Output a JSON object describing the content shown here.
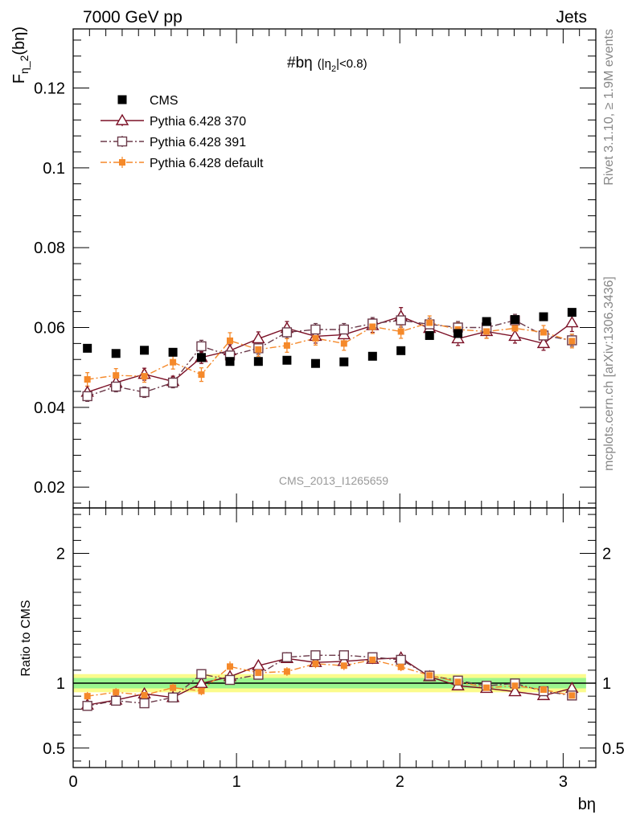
{
  "header": {
    "left": "7000 GeV pp",
    "right": "Jets"
  },
  "side_labels": {
    "rivet": "Rivet 3.1.10, ≥ 1.9M events",
    "mcplots": "mcplots.cern.ch [arXiv:1306.3436]"
  },
  "chart_data": [
    {
      "type": "scatter",
      "title_main": "#bη",
      "title_cut": "(|η",
      "title_cut_sub": "2",
      "title_cut_end": "|<0.8)",
      "ylabel_main": "F",
      "ylabel_sub": "η_2",
      "ylabel_end": "(bη)",
      "watermark": "CMS_2013_I1265659",
      "ylim": [
        0.0148,
        0.1348
      ],
      "xlim": [
        0,
        3.2
      ],
      "y_ticks": [
        0.02,
        0.04,
        0.06,
        0.08,
        0.1,
        0.12
      ],
      "y_tick_labels": [
        "0.02",
        "0.04",
        "0.06",
        "0.08",
        "0.1",
        "0.12"
      ],
      "legend_position": "top-left",
      "x": [
        0.087,
        0.262,
        0.436,
        0.611,
        0.785,
        0.96,
        1.134,
        1.309,
        1.484,
        1.658,
        1.833,
        2.007,
        2.182,
        2.356,
        2.531,
        2.705,
        2.88,
        3.054
      ],
      "series": [
        {
          "name": "CMS",
          "color": "#000000",
          "marker": "filled-square",
          "line": "none",
          "values": [
            0.0548,
            0.0535,
            0.0543,
            0.0538,
            0.0525,
            0.0515,
            0.0515,
            0.0518,
            0.051,
            0.0514,
            0.0528,
            0.0542,
            0.058,
            0.0585,
            0.0615,
            0.062,
            0.0627,
            0.0638
          ]
        },
        {
          "name": "Pythia 6.428 370",
          "color": "#7b1026",
          "marker": "open-triangle",
          "line": "solid",
          "values": [
            0.0438,
            0.0462,
            0.0483,
            0.0465,
            0.0525,
            0.0542,
            0.0572,
            0.0598,
            0.0578,
            0.0582,
            0.0605,
            0.0628,
            0.0598,
            0.0572,
            0.059,
            0.0578,
            0.056,
            0.0612
          ],
          "errors": [
            0.0015,
            0.0015,
            0.0015,
            0.0013,
            0.0015,
            0.0015,
            0.0017,
            0.0017,
            0.0017,
            0.0017,
            0.0017,
            0.0022,
            0.0017,
            0.0017,
            0.0017,
            0.0017,
            0.0017,
            0.0022
          ]
        },
        {
          "name": "Pythia 6.428 391",
          "color": "#6b3a4a",
          "marker": "open-square",
          "line": "dash-dot",
          "values": [
            0.0428,
            0.0452,
            0.0438,
            0.0462,
            0.0553,
            0.053,
            0.0548,
            0.0588,
            0.0595,
            0.0595,
            0.061,
            0.0618,
            0.0608,
            0.06,
            0.06,
            0.0618,
            0.058,
            0.0568
          ],
          "errors": [
            0.0013,
            0.0013,
            0.0013,
            0.0013,
            0.0015,
            0.0015,
            0.0015,
            0.0015,
            0.0015,
            0.0015,
            0.0015,
            0.0017,
            0.0015,
            0.0015,
            0.0015,
            0.0015,
            0.0015,
            0.0015
          ]
        },
        {
          "name": "Pythia 6.428 default",
          "color": "#f5892a",
          "marker": "filled-small-square",
          "line": "dash-dot",
          "values": [
            0.047,
            0.048,
            0.0478,
            0.0513,
            0.0482,
            0.0567,
            0.0545,
            0.0555,
            0.0573,
            0.056,
            0.0602,
            0.059,
            0.0612,
            0.0595,
            0.059,
            0.0598,
            0.0588,
            0.0566
          ],
          "errors": [
            0.0017,
            0.0017,
            0.0015,
            0.0017,
            0.0017,
            0.002,
            0.0017,
            0.0017,
            0.0017,
            0.0017,
            0.0017,
            0.0017,
            0.0017,
            0.0017,
            0.0017,
            0.0017,
            0.0017,
            0.0017
          ]
        }
      ]
    },
    {
      "type": "scatter",
      "ylabel": "Ratio to CMS",
      "xlabel": "bη",
      "ylim": [
        0.35,
        2.35
      ],
      "xlim": [
        0,
        3.2
      ],
      "y_ticks": [
        0.5,
        1,
        2
      ],
      "y_tick_labels": [
        "0.5",
        "1",
        "2"
      ],
      "x_ticks": [
        0,
        1,
        2,
        3
      ],
      "x_tick_labels": [
        "0",
        "1",
        "2",
        "3"
      ],
      "reference_line": 1,
      "band_inner_halfwidth": 0.04,
      "band_outer_halfwidth": 0.07,
      "band_inner_color": "#9af58e",
      "band_outer_color": "#fbfb8c",
      "series": [
        {
          "name": "Pythia 6.428 370",
          "values": [
            0.832,
            0.87,
            0.918,
            0.89,
            0.998,
            1.05,
            1.135,
            1.19,
            1.16,
            1.168,
            1.185,
            1.195,
            1.05,
            0.98,
            0.96,
            0.935,
            0.905,
            0.96
          ]
        },
        {
          "name": "Pythia 6.428 391",
          "values": [
            0.825,
            0.865,
            0.845,
            0.89,
            1.07,
            1.025,
            1.065,
            1.2,
            1.215,
            1.215,
            1.2,
            1.18,
            1.058,
            1.02,
            0.98,
            0.998,
            0.938,
            0.905
          ]
        },
        {
          "name": "Pythia 6.428 default",
          "values": [
            0.9,
            0.93,
            0.908,
            0.965,
            0.94,
            1.128,
            1.08,
            1.09,
            1.15,
            1.135,
            1.18,
            1.125,
            1.06,
            1.01,
            0.965,
            0.98,
            0.95,
            0.905
          ]
        }
      ]
    }
  ]
}
